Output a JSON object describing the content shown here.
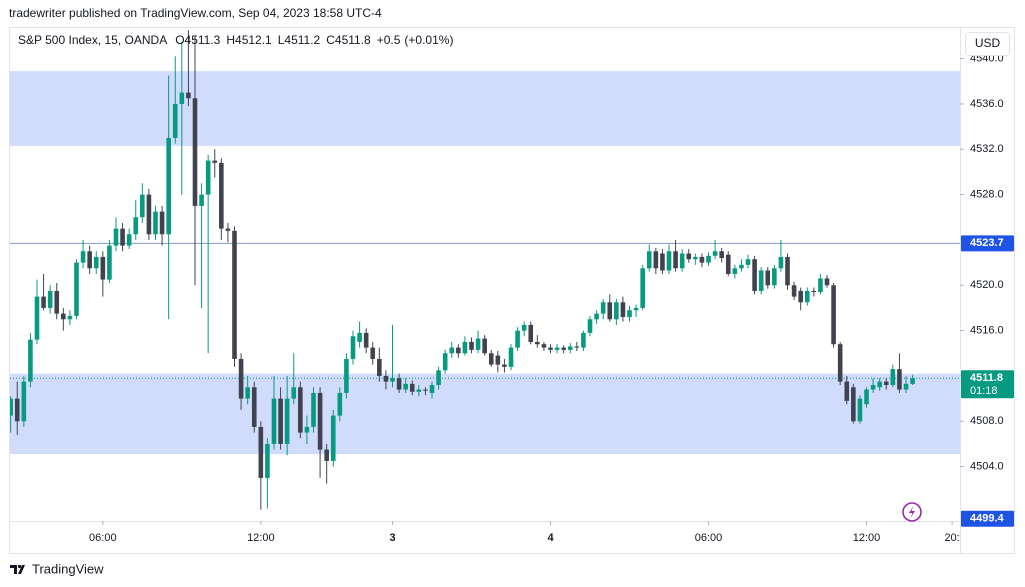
{
  "header": "tradewriter published on TradingView.com, Sep 04, 2023 18:58 UTC-4",
  "currency": "USD",
  "footer": "TradingView",
  "chart_data": {
    "type": "candlestick",
    "legend": {
      "symbol": "S&P 500 Index, 15, OANDA",
      "open": {
        "label": "O",
        "value": 4511.3
      },
      "high": {
        "label": "H",
        "value": 4512.1
      },
      "low": {
        "label": "L",
        "value": 4511.2
      },
      "close": {
        "label": "C",
        "value": 4511.8
      },
      "change": "+0.5",
      "change_pct": "(+0.01%)"
    },
    "up_color": "#089981",
    "down_color": "#40434e",
    "xlim": [
      -0.1,
      144.2
    ],
    "xticks": [
      {
        "value": 14,
        "label": "06:00"
      },
      {
        "value": 38,
        "label": "12:00"
      },
      {
        "value": 58,
        "label": "3"
      },
      {
        "value": 82,
        "label": "4"
      },
      {
        "value": 106,
        "label": "06:00"
      },
      {
        "value": 130,
        "label": "12:00"
      },
      {
        "value": 143,
        "label": "20:"
      }
    ],
    "ylim": [
      4499.2,
      4542.7
    ],
    "yticks": [
      {
        "value": 4540,
        "label": "4540.0"
      },
      {
        "value": 4536,
        "label": "4536.0"
      },
      {
        "value": 4532,
        "label": "4532.0"
      },
      {
        "value": 4528,
        "label": "4528.0"
      },
      {
        "value": 4524,
        "label": "4524.0"
      },
      {
        "value": 4520,
        "label": "4520.0"
      },
      {
        "value": 4516,
        "label": "4516.0"
      },
      {
        "value": 4512,
        "label": "4512.0"
      },
      {
        "value": 4508,
        "label": "4508.0"
      },
      {
        "value": 4504,
        "label": "4504.0"
      }
    ],
    "zones": [
      {
        "from": 4532.3,
        "to": 4538.9,
        "color": "#d1dcfd"
      },
      {
        "from": 4505.1,
        "to": 4512.2,
        "color": "#d1dcfd"
      }
    ],
    "price_tags": [
      {
        "value": 4523.7,
        "label": "4523.7",
        "color": "#1e53e5",
        "line": "solid"
      },
      {
        "value": 4511.8,
        "label": "4511.8",
        "countdown": "01:18",
        "color": "#089981",
        "line": "dotted"
      },
      {
        "value": 4499.4,
        "label": "4499.4",
        "color": "#1e53e5",
        "line": "none"
      }
    ],
    "candles": [
      [
        4508.5,
        4510.2,
        4507.0,
        4510.0
      ],
      [
        4510.0,
        4511.5,
        4506.8,
        4508.0
      ],
      [
        4508.0,
        4512.0,
        4507.5,
        4511.5
      ],
      [
        4511.5,
        4515.8,
        4511.0,
        4515.2
      ],
      [
        4515.2,
        4520.5,
        4514.8,
        4519.0
      ],
      [
        4519.0,
        4521.0,
        4517.8,
        4518.0
      ],
      [
        4518.0,
        4520.0,
        4517.5,
        4519.5
      ],
      [
        4519.5,
        4520.2,
        4517.0,
        4517.5
      ],
      [
        4517.5,
        4518.0,
        4516.0,
        4517.0
      ],
      [
        4517.0,
        4517.8,
        4516.5,
        4517.3
      ],
      [
        4517.3,
        4522.3,
        4517.0,
        4522.0
      ],
      [
        4522.0,
        4524.0,
        4521.5,
        4523.0
      ],
      [
        4523.0,
        4523.5,
        4521.0,
        4521.5
      ],
      [
        4521.5,
        4523.0,
        4521.0,
        4522.5
      ],
      [
        4522.5,
        4523.0,
        4519.0,
        4520.5
      ],
      [
        4520.5,
        4524.0,
        4520.2,
        4523.5
      ],
      [
        4523.5,
        4526.0,
        4523.0,
        4525.0
      ],
      [
        4525.0,
        4525.5,
        4523.0,
        4523.5
      ],
      [
        4523.5,
        4525.0,
        4523.2,
        4524.5
      ],
      [
        4524.5,
        4527.5,
        4524.0,
        4526.0
      ],
      [
        4526.0,
        4529.0,
        4525.5,
        4528.0
      ],
      [
        4528.0,
        4528.5,
        4524.0,
        4524.5
      ],
      [
        4524.5,
        4527.0,
        4524.0,
        4526.5
      ],
      [
        4526.5,
        4527.0,
        4523.5,
        4524.5
      ],
      [
        4524.5,
        4538.5,
        4517.0,
        4533.0
      ],
      [
        4533.0,
        4540.2,
        4532.5,
        4536.0
      ],
      [
        4536.0,
        4541.5,
        4528.0,
        4537.0
      ],
      [
        4537.0,
        4542.5,
        4535.8,
        4536.5
      ],
      [
        4536.5,
        4542.0,
        4520.0,
        4527.0
      ],
      [
        4527.0,
        4529.0,
        4518.0,
        4528.0
      ],
      [
        4528.0,
        4531.5,
        4514.0,
        4531.0
      ],
      [
        4531.0,
        4532.0,
        4529.5,
        4530.8
      ],
      [
        4530.8,
        4531.2,
        4524.0,
        4525.0
      ],
      [
        4525.0,
        4525.5,
        4523.8,
        4524.8
      ],
      [
        4524.8,
        4525.2,
        4512.8,
        4513.5
      ],
      [
        4513.5,
        4514.0,
        4509.0,
        4510.0
      ],
      [
        4510.0,
        4512.0,
        4509.5,
        4511.0
      ],
      [
        4511.0,
        4511.5,
        4507.0,
        4507.5
      ],
      [
        4507.5,
        4508.0,
        4500.2,
        4503.0
      ],
      [
        4503.0,
        4506.5,
        4500.3,
        4506.0
      ],
      [
        4506.0,
        4512.0,
        4505.5,
        4510.0
      ],
      [
        4510.0,
        4511.0,
        4505.5,
        4506.0
      ],
      [
        4506.0,
        4512.0,
        4505.0,
        4510.0
      ],
      [
        4510.0,
        4514.0,
        4509.5,
        4511.0
      ],
      [
        4511.0,
        4511.5,
        4506.5,
        4507.0
      ],
      [
        4507.0,
        4508.5,
        4506.0,
        4507.5
      ],
      [
        4507.5,
        4511.0,
        4507.0,
        4510.5
      ],
      [
        4510.5,
        4511.0,
        4503.0,
        4505.5
      ],
      [
        4505.5,
        4506.0,
        4502.5,
        4504.5
      ],
      [
        4504.5,
        4509.0,
        4504.0,
        4508.5
      ],
      [
        4508.5,
        4511.0,
        4508.0,
        4510.5
      ],
      [
        4510.5,
        4514.0,
        4510.0,
        4513.5
      ],
      [
        4513.5,
        4516.0,
        4513.0,
        4515.5
      ],
      [
        4515.0,
        4516.8,
        4514.5,
        4515.8
      ],
      [
        4515.8,
        4516.2,
        4514.0,
        4514.5
      ],
      [
        4514.5,
        4515.0,
        4513.0,
        4513.5
      ],
      [
        4513.5,
        4514.5,
        4511.5,
        4512.0
      ],
      [
        4512.0,
        4512.5,
        4510.8,
        4511.5
      ],
      [
        4511.5,
        4516.5,
        4511.0,
        4511.8
      ],
      [
        4511.8,
        4512.2,
        4510.5,
        4510.8
      ],
      [
        4510.8,
        4511.8,
        4510.5,
        4511.3
      ],
      [
        4511.3,
        4511.6,
        4510.3,
        4510.6
      ],
      [
        4510.6,
        4511.2,
        4510.2,
        4510.8
      ],
      [
        4510.8,
        4511.0,
        4510.3,
        4510.7
      ],
      [
        4510.5,
        4511.5,
        4510.0,
        4511.2
      ],
      [
        4511.2,
        4512.8,
        4510.8,
        4512.5
      ],
      [
        4512.5,
        4514.3,
        4512.2,
        4514.0
      ],
      [
        4514.0,
        4515.0,
        4513.6,
        4514.5
      ],
      [
        4514.5,
        4514.8,
        4513.6,
        4514.0
      ],
      [
        4514.0,
        4515.5,
        4513.8,
        4515.0
      ],
      [
        4515.0,
        4515.4,
        4514.0,
        4514.3
      ],
      [
        4514.3,
        4516.0,
        4514.0,
        4515.3
      ],
      [
        4515.3,
        4515.6,
        4513.8,
        4514.0
      ],
      [
        4514.0,
        4514.3,
        4512.8,
        4513.0
      ],
      [
        4513.8,
        4514.2,
        4512.3,
        4513.0
      ],
      [
        4513.0,
        4513.5,
        4512.3,
        4512.8
      ],
      [
        4512.8,
        4514.8,
        4512.5,
        4514.5
      ],
      [
        4514.5,
        4516.3,
        4514.2,
        4516.0
      ],
      [
        4516.0,
        4516.8,
        4515.5,
        4516.5
      ],
      [
        4516.5,
        4516.8,
        4514.8,
        4515.0
      ],
      [
        4515.0,
        4515.6,
        4514.5,
        4514.8
      ],
      [
        4514.8,
        4515.0,
        4514.2,
        4514.5
      ],
      [
        4514.5,
        4514.8,
        4514.0,
        4514.3
      ],
      [
        4514.3,
        4514.8,
        4514.0,
        4514.5
      ],
      [
        4514.5,
        4514.7,
        4514.0,
        4514.3
      ],
      [
        4514.3,
        4514.9,
        4514.0,
        4514.6
      ],
      [
        4514.6,
        4515.0,
        4514.2,
        4514.5
      ],
      [
        4514.5,
        4516.0,
        4514.2,
        4515.8
      ],
      [
        4515.8,
        4517.3,
        4515.5,
        4517.0
      ],
      [
        4517.0,
        4517.8,
        4516.6,
        4517.5
      ],
      [
        4517.5,
        4518.8,
        4517.0,
        4518.5
      ],
      [
        4518.5,
        4519.2,
        4516.8,
        4517.0
      ],
      [
        4517.0,
        4518.8,
        4516.5,
        4518.5
      ],
      [
        4518.5,
        4519.0,
        4516.8,
        4517.2
      ],
      [
        4517.2,
        4518.2,
        4516.8,
        4517.8
      ],
      [
        4517.8,
        4518.3,
        4517.2,
        4518.0
      ],
      [
        4518.0,
        4521.8,
        4517.8,
        4521.5
      ],
      [
        4521.5,
        4523.6,
        4521.2,
        4523.0
      ],
      [
        4523.0,
        4523.3,
        4521.0,
        4521.5
      ],
      [
        4522.8,
        4523.2,
        4521.0,
        4521.3
      ],
      [
        4521.3,
        4523.6,
        4521.0,
        4523.0
      ],
      [
        4523.0,
        4524.0,
        4521.2,
        4521.5
      ],
      [
        4521.5,
        4523.2,
        4521.2,
        4522.8
      ],
      [
        4522.8,
        4523.2,
        4522.0,
        4522.3
      ],
      [
        4522.3,
        4522.8,
        4521.8,
        4522.5
      ],
      [
        4522.5,
        4522.8,
        4521.6,
        4522.0
      ],
      [
        4522.0,
        4522.9,
        4521.7,
        4522.6
      ],
      [
        4522.6,
        4524.0,
        4522.3,
        4523.0
      ],
      [
        4523.0,
        4523.3,
        4522.0,
        4522.4
      ],
      [
        4522.7,
        4523.0,
        4520.8,
        4521.0
      ],
      [
        4521.0,
        4521.8,
        4520.6,
        4521.5
      ],
      [
        4521.5,
        4522.3,
        4521.2,
        4521.8
      ],
      [
        4521.8,
        4522.7,
        4521.5,
        4522.3
      ],
      [
        4522.3,
        4522.6,
        4519.2,
        4519.5
      ],
      [
        4519.5,
        4521.6,
        4519.2,
        4521.3
      ],
      [
        4521.3,
        4521.6,
        4519.7,
        4520.0
      ],
      [
        4520.0,
        4521.8,
        4519.7,
        4521.5
      ],
      [
        4521.5,
        4524.0,
        4521.2,
        4522.5
      ],
      [
        4522.5,
        4522.8,
        4519.6,
        4520.0
      ],
      [
        4520.0,
        4520.3,
        4518.7,
        4519.0
      ],
      [
        4519.5,
        4519.8,
        4517.8,
        4518.5
      ],
      [
        4518.5,
        4519.8,
        4518.2,
        4519.5
      ],
      [
        4519.5,
        4519.8,
        4519.0,
        4519.4
      ],
      [
        4519.4,
        4521.0,
        4519.2,
        4520.6
      ],
      [
        4520.6,
        4520.9,
        4519.8,
        4520.0
      ],
      [
        4520.0,
        4520.2,
        4514.5,
        4514.8
      ],
      [
        4514.8,
        4515.0,
        4511.2,
        4511.5
      ],
      [
        4511.5,
        4512.0,
        4509.5,
        4509.8
      ],
      [
        4511.0,
        4511.3,
        4507.8,
        4508.0
      ],
      [
        4508.0,
        4510.3,
        4507.8,
        4510.0
      ],
      [
        4509.5,
        4511.0,
        4509.2,
        4510.8
      ],
      [
        4510.8,
        4511.8,
        4510.5,
        4511.2
      ],
      [
        4511.0,
        4511.8,
        4510.7,
        4511.5
      ],
      [
        4511.5,
        4511.8,
        4510.8,
        4511.2
      ],
      [
        4511.2,
        4513.0,
        4511.0,
        4512.6
      ],
      [
        4512.6,
        4514.0,
        4510.5,
        4510.8
      ],
      [
        4510.8,
        4512.0,
        4510.5,
        4511.3
      ],
      [
        4511.3,
        4512.1,
        4511.2,
        4511.8
      ]
    ]
  }
}
